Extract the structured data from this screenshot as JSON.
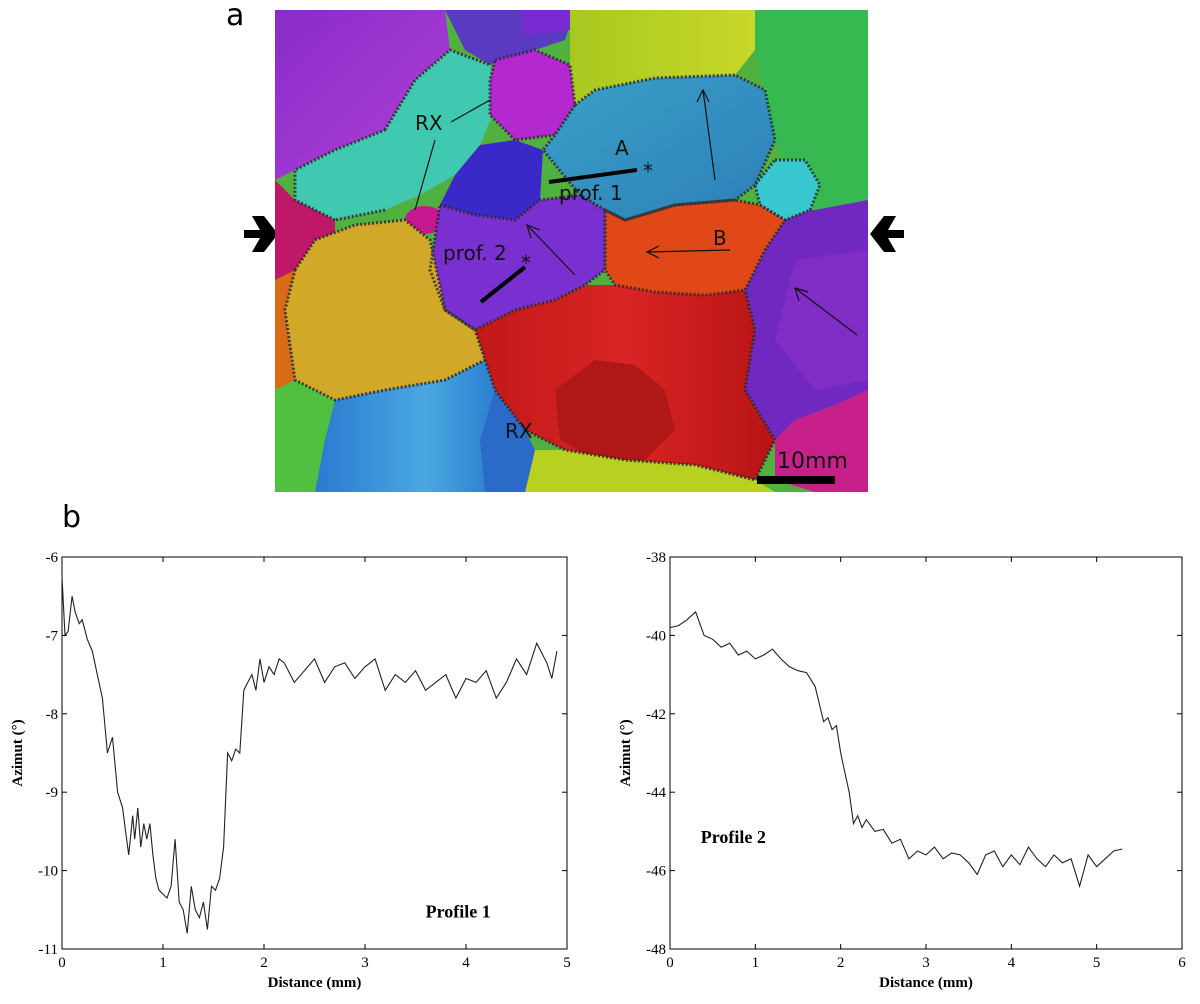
{
  "figure": {
    "panel_a_letter": "a",
    "panel_b_letter": "b",
    "map": {
      "labels": {
        "rx_top": "RX",
        "rx_bottom": "RX",
        "grain_a": "A",
        "grain_b": "B",
        "profile_1": "prof. 1",
        "profile_2": "prof. 2",
        "star_1": "*",
        "star_2": "*",
        "scale_bar": "10mm"
      },
      "colors": {
        "grain_boundary": "#2a2a2a",
        "scale_bar": "#000000"
      }
    }
  },
  "chart_data": [
    {
      "type": "line",
      "xlabel": "Distance (mm)",
      "ylabel": "Azimut (°)",
      "annotation": "Profile 1",
      "xlim": [
        0,
        5
      ],
      "ylim": [
        -11,
        -6
      ],
      "xticks": [
        "0",
        "1",
        "2",
        "3",
        "4",
        "5"
      ],
      "yticks": [
        "-11",
        "-10",
        "-9",
        "-8",
        "-7",
        "-6"
      ],
      "series": [
        {
          "x": [
            0.0,
            0.03,
            0.06,
            0.1,
            0.13,
            0.17,
            0.2,
            0.25,
            0.3,
            0.35,
            0.4,
            0.45,
            0.5,
            0.55,
            0.6,
            0.63,
            0.66,
            0.7,
            0.72,
            0.75,
            0.78,
            0.81,
            0.84,
            0.87,
            0.9,
            0.93,
            0.96,
            1.0,
            1.04,
            1.08,
            1.12,
            1.16,
            1.2,
            1.24,
            1.28,
            1.32,
            1.36,
            1.4,
            1.44,
            1.48,
            1.52,
            1.56,
            1.6,
            1.64,
            1.68,
            1.72,
            1.76,
            1.8,
            1.84,
            1.88,
            1.92,
            1.96,
            2.0,
            2.05,
            2.1,
            2.15,
            2.2,
            2.3,
            2.4,
            2.5,
            2.6,
            2.7,
            2.8,
            2.9,
            3.0,
            3.1,
            3.2,
            3.3,
            3.4,
            3.5,
            3.6,
            3.7,
            3.8,
            3.9,
            4.0,
            4.1,
            4.2,
            4.3,
            4.4,
            4.5,
            4.6,
            4.7,
            4.8,
            4.85,
            4.9
          ],
          "y": [
            -6.25,
            -7.0,
            -6.95,
            -6.5,
            -6.7,
            -6.85,
            -6.8,
            -7.05,
            -7.2,
            -7.5,
            -7.8,
            -8.5,
            -8.3,
            -9.0,
            -9.2,
            -9.5,
            -9.8,
            -9.3,
            -9.6,
            -9.2,
            -9.7,
            -9.4,
            -9.6,
            -9.4,
            -9.8,
            -10.1,
            -10.25,
            -10.3,
            -10.35,
            -10.2,
            -9.6,
            -10.4,
            -10.5,
            -10.8,
            -10.2,
            -10.5,
            -10.6,
            -10.4,
            -10.75,
            -10.2,
            -10.25,
            -10.1,
            -9.7,
            -8.5,
            -8.6,
            -8.45,
            -8.5,
            -7.7,
            -7.6,
            -7.5,
            -7.7,
            -7.3,
            -7.6,
            -7.4,
            -7.5,
            -7.3,
            -7.35,
            -7.6,
            -7.45,
            -7.3,
            -7.6,
            -7.4,
            -7.35,
            -7.55,
            -7.4,
            -7.3,
            -7.7,
            -7.5,
            -7.6,
            -7.45,
            -7.7,
            -7.6,
            -7.5,
            -7.8,
            -7.55,
            -7.6,
            -7.45,
            -7.8,
            -7.6,
            -7.3,
            -7.5,
            -7.1,
            -7.35,
            -7.55,
            -7.2
          ]
        }
      ]
    },
    {
      "type": "line",
      "xlabel": "Distance (mm)",
      "ylabel": "Azimut (°)",
      "annotation": "Profile 2",
      "xlim": [
        0,
        6
      ],
      "ylim": [
        -48,
        -38
      ],
      "xticks": [
        "0",
        "1",
        "2",
        "3",
        "4",
        "5",
        "6"
      ],
      "yticks": [
        "-48",
        "-46",
        "-44",
        "-42",
        "-40",
        "-38"
      ],
      "series": [
        {
          "x": [
            0.0,
            0.1,
            0.2,
            0.3,
            0.4,
            0.5,
            0.6,
            0.7,
            0.8,
            0.9,
            1.0,
            1.1,
            1.2,
            1.3,
            1.4,
            1.5,
            1.6,
            1.7,
            1.8,
            1.85,
            1.9,
            1.95,
            2.0,
            2.05,
            2.1,
            2.15,
            2.2,
            2.25,
            2.3,
            2.4,
            2.5,
            2.6,
            2.7,
            2.8,
            2.9,
            3.0,
            3.1,
            3.2,
            3.3,
            3.4,
            3.5,
            3.6,
            3.7,
            3.8,
            3.9,
            4.0,
            4.1,
            4.2,
            4.3,
            4.4,
            4.5,
            4.6,
            4.7,
            4.8,
            4.9,
            5.0,
            5.1,
            5.2,
            5.3
          ],
          "y": [
            -39.8,
            -39.75,
            -39.6,
            -39.4,
            -40.0,
            -40.1,
            -40.3,
            -40.2,
            -40.5,
            -40.4,
            -40.6,
            -40.5,
            -40.35,
            -40.6,
            -40.8,
            -40.9,
            -40.95,
            -41.3,
            -42.2,
            -42.1,
            -42.4,
            -42.3,
            -43.0,
            -43.5,
            -44.0,
            -44.8,
            -44.6,
            -44.9,
            -44.7,
            -45.0,
            -44.95,
            -45.3,
            -45.2,
            -45.7,
            -45.5,
            -45.6,
            -45.4,
            -45.7,
            -45.55,
            -45.6,
            -45.8,
            -46.1,
            -45.6,
            -45.5,
            -45.9,
            -45.6,
            -45.85,
            -45.4,
            -45.7,
            -45.9,
            -45.6,
            -45.8,
            -45.7,
            -46.4,
            -45.6,
            -45.9,
            -45.7,
            -45.5,
            -45.45
          ]
        }
      ]
    }
  ]
}
